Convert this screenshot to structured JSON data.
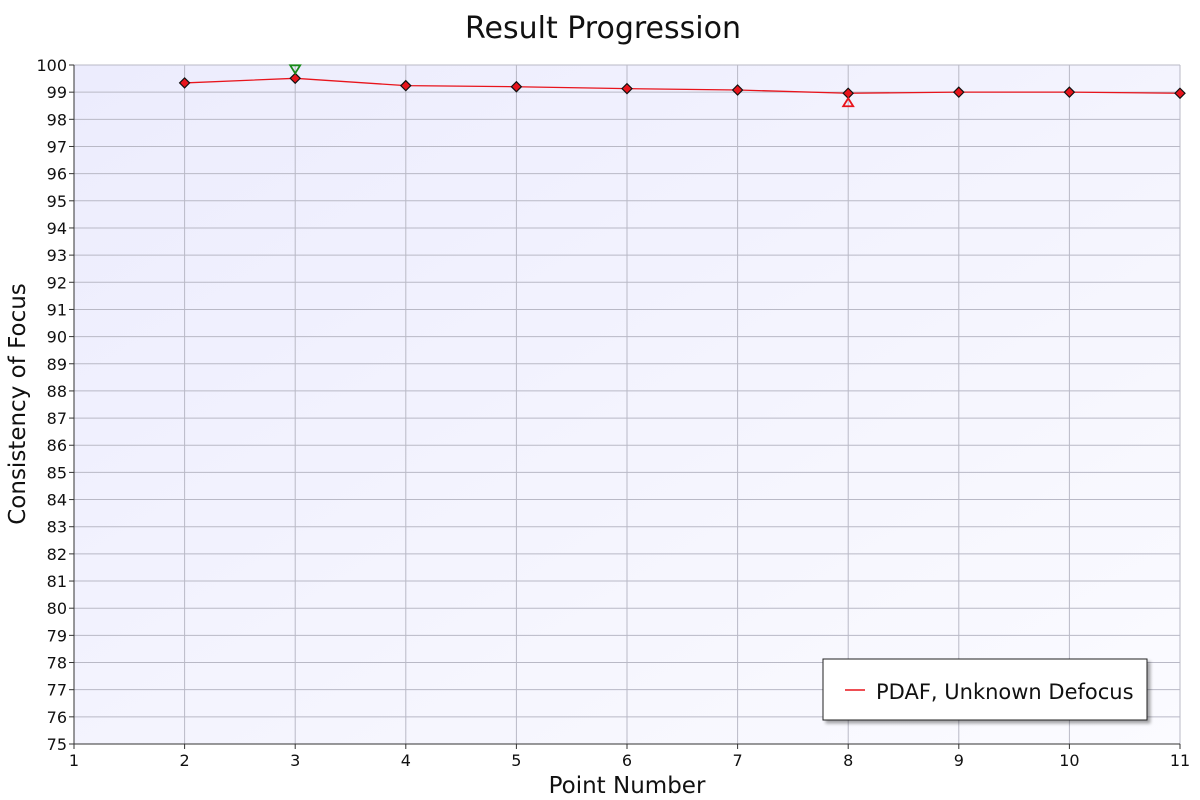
{
  "chart_data": {
    "type": "line",
    "title": "Result Progression",
    "xlabel": "Point Number",
    "ylabel": "Consistency of Focus",
    "xlim": [
      1,
      11
    ],
    "ylim": [
      75,
      100
    ],
    "xticks": [
      1,
      2,
      3,
      4,
      5,
      6,
      7,
      8,
      9,
      10,
      11
    ],
    "yticks": [
      75,
      76,
      77,
      78,
      79,
      80,
      81,
      82,
      83,
      84,
      85,
      86,
      87,
      88,
      89,
      90,
      91,
      92,
      93,
      94,
      95,
      96,
      97,
      98,
      99,
      100
    ],
    "grid": true,
    "legend_position": "bottom-right",
    "series": [
      {
        "name": "PDAF, Unknown Defocus",
        "color": "#e8141c",
        "marker": "diamond",
        "x": [
          2,
          3,
          4,
          5,
          6,
          7,
          8,
          9,
          10,
          11
        ],
        "y": [
          99.34,
          99.51,
          99.24,
          99.2,
          99.13,
          99.08,
          98.96,
          99.0,
          99.0,
          98.96
        ]
      }
    ],
    "annotations": [
      {
        "type": "max-marker",
        "shape": "down-triangle",
        "color": "#1a8a1a",
        "x": 3,
        "y": 99.51
      },
      {
        "type": "min-marker",
        "shape": "up-triangle",
        "color": "#e8141c",
        "x": 8,
        "y": 98.96
      }
    ]
  }
}
